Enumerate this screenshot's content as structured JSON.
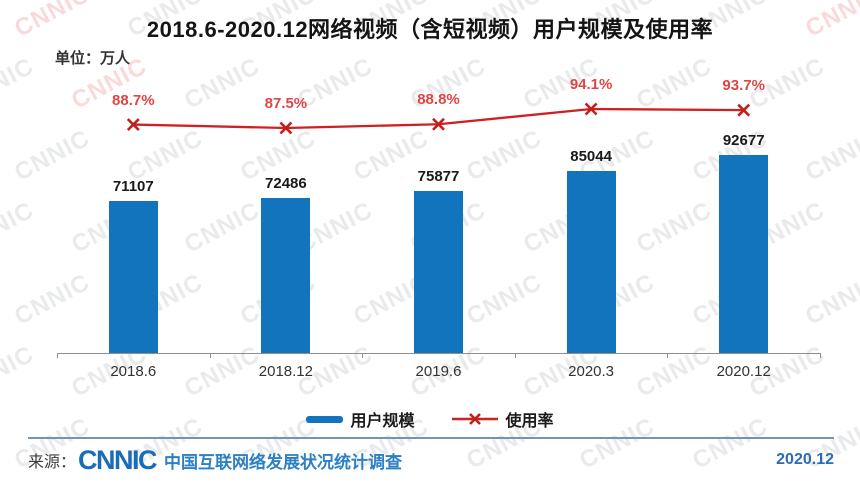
{
  "title": "2018.6-2020.12网络视频（含短视频）用户规模及使用率",
  "unit_label": "单位：万人",
  "watermark_text": "CNNIC",
  "chart_data": {
    "type": "bar",
    "categories": [
      "2018.6",
      "2018.12",
      "2019.6",
      "2020.3",
      "2020.12"
    ],
    "series": [
      {
        "name": "用户规模",
        "type": "bar",
        "unit": "万人",
        "values": [
          71107,
          72486,
          75877,
          85044,
          92677
        ],
        "color": "#1274bd"
      },
      {
        "name": "使用率",
        "type": "line",
        "unit": "%",
        "values": [
          88.7,
          87.5,
          88.8,
          94.1,
          93.7
        ],
        "color": "#cf2121"
      }
    ],
    "value_labels": [
      "71107",
      "72486",
      "75877",
      "85044",
      "92677"
    ],
    "rate_labels": [
      "88.7%",
      "87.5%",
      "88.8%",
      "94.1%",
      "93.7%"
    ],
    "title": "2018.6-2020.12网络视频（含短视频）用户规模及使用率",
    "xlabel": "",
    "ylabel": "单位：万人",
    "grid": false,
    "legend_position": "bottom"
  },
  "legend": {
    "bar_label": "用户规模",
    "line_label": "使用率"
  },
  "footer": {
    "source_prefix": "来源：",
    "logo_text": "CNNIC",
    "source_text": "中国互联网络发展状况统计调查",
    "date": "2020.12"
  },
  "colors": {
    "bar": "#1274bd",
    "line": "#cf2121",
    "rate_label": "#e04545",
    "axis": "#8f8f8f",
    "footer_rule": "#7493b8",
    "logo_blue": "#1b6cb8",
    "source_blue": "#2e80c4"
  }
}
